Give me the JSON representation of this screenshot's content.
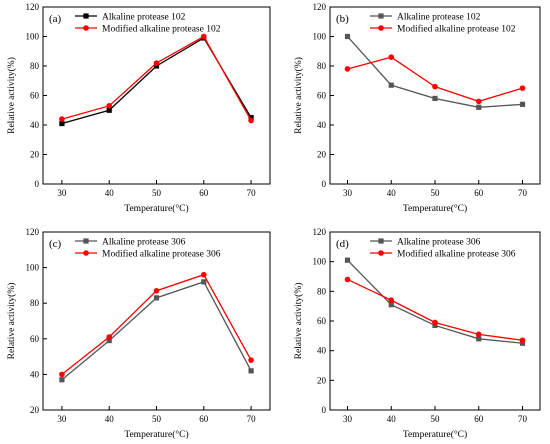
{
  "chart_data": [
    {
      "type": "line",
      "panel_label": "(a)",
      "xlabel": "Temperature(°C)",
      "ylabel": "Relative activity(%)",
      "x": [
        30,
        40,
        50,
        60,
        70
      ],
      "xlim": [
        26,
        74
      ],
      "ylim": [
        0,
        120
      ],
      "xticks": [
        30,
        40,
        50,
        60,
        70
      ],
      "yticks": [
        0,
        20,
        40,
        60,
        80,
        100,
        120
      ],
      "legend_position": "top-left",
      "series": [
        {
          "name": "Alkaline protease 102",
          "color": "#000000",
          "marker": "square",
          "values": [
            41,
            50,
            80,
            99,
            45
          ]
        },
        {
          "name": "Modified alkaline protease 102",
          "color": "#ff0000",
          "marker": "circle",
          "values": [
            44,
            53,
            82,
            100,
            43
          ]
        }
      ]
    },
    {
      "type": "line",
      "panel_label": "(b)",
      "xlabel": "Temperature(°C)",
      "ylabel": "Relative activity(%)",
      "x": [
        30,
        40,
        50,
        60,
        70
      ],
      "xlim": [
        26,
        74
      ],
      "ylim": [
        0,
        120
      ],
      "xticks": [
        30,
        40,
        50,
        60,
        70
      ],
      "yticks": [
        0,
        20,
        40,
        60,
        80,
        100,
        120
      ],
      "legend_position": "top-right",
      "series": [
        {
          "name": "Alkaline protease 102",
          "color": "#555555",
          "marker": "square",
          "values": [
            100,
            67,
            58,
            52,
            54
          ]
        },
        {
          "name": "Modified alkaline protease 102",
          "color": "#ff0000",
          "marker": "circle",
          "values": [
            78,
            86,
            66,
            56,
            65
          ]
        }
      ]
    },
    {
      "type": "line",
      "panel_label": "(c)",
      "xlabel": "Temperature(°C)",
      "ylabel": "Relative activity(%)",
      "x": [
        30,
        40,
        50,
        60,
        70
      ],
      "xlim": [
        26,
        74
      ],
      "ylim": [
        20,
        120
      ],
      "xticks": [
        30,
        40,
        50,
        60,
        70
      ],
      "yticks": [
        20,
        40,
        60,
        80,
        100,
        120
      ],
      "legend_position": "top-left",
      "series": [
        {
          "name": "Alkaline protease 306",
          "color": "#555555",
          "marker": "square",
          "values": [
            37,
            59,
            83,
            92,
            42
          ]
        },
        {
          "name": "Modified alkaline protease 306",
          "color": "#ff0000",
          "marker": "circle",
          "values": [
            40,
            61,
            87,
            96,
            48
          ]
        }
      ]
    },
    {
      "type": "line",
      "panel_label": "(d)",
      "xlabel": "Temperature(°C)",
      "ylabel": "Relative activity(%)",
      "x": [
        30,
        40,
        50,
        60,
        70
      ],
      "xlim": [
        26,
        74
      ],
      "ylim": [
        0,
        120
      ],
      "xticks": [
        30,
        40,
        50,
        60,
        70
      ],
      "yticks": [
        0,
        20,
        40,
        60,
        80,
        100,
        120
      ],
      "legend_position": "top-right",
      "series": [
        {
          "name": "Alkaline protease 306",
          "color": "#555555",
          "marker": "square",
          "values": [
            101,
            71,
            57,
            48,
            45
          ]
        },
        {
          "name": "Modified alkaline protease 306",
          "color": "#ff0000",
          "marker": "circle",
          "values": [
            88,
            74,
            59,
            51,
            47
          ]
        }
      ]
    }
  ]
}
